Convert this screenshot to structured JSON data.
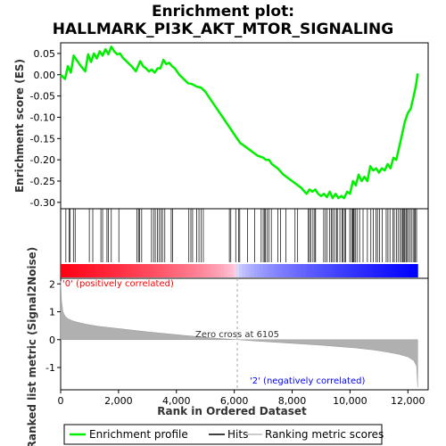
{
  "chart_data": {
    "type": "line",
    "title_line1": "Enrichment plot:",
    "title_line2": "HALLMARK_PI3K_AKT_MTOR_SIGNALING",
    "top_panel": {
      "ylabel": "Enrichment score (ES)",
      "ylim": [
        -0.315,
        0.075
      ],
      "yticks": [
        0.05,
        0.0,
        -0.05,
        -0.1,
        -0.15,
        -0.2,
        -0.25,
        -0.3
      ],
      "ytick_labels": [
        "0.05",
        "0.00",
        "-0.05",
        "-0.10",
        "-0.15",
        "-0.20",
        "-0.25",
        "-0.30"
      ],
      "line_color": "#00ee00",
      "es_curve": {
        "x": [
          0,
          150,
          250,
          350,
          450,
          550,
          700,
          850,
          950,
          1050,
          1150,
          1250,
          1350,
          1450,
          1550,
          1650,
          1750,
          1850,
          1950,
          2050,
          2150,
          2300,
          2450,
          2600,
          2750,
          2850,
          2950,
          3050,
          3150,
          3250,
          3350,
          3450,
          3550,
          3650,
          3750,
          3850,
          3950,
          4100,
          4250,
          4400,
          4550,
          4700,
          4850,
          5000,
          5200,
          5400,
          5600,
          5800,
          6000,
          6200,
          6400,
          6600,
          6800,
          7000,
          7100,
          7200,
          7300,
          7500,
          7700,
          7900,
          8100,
          8300,
          8500,
          8600,
          8700,
          8800,
          8900,
          9000,
          9100,
          9200,
          9300,
          9400,
          9500,
          9600,
          9700,
          9800,
          9900,
          10000,
          10100,
          10200,
          10300,
          10400,
          10500,
          10600,
          10700,
          10800,
          10900,
          11000,
          11100,
          11200,
          11300,
          11400,
          11500,
          11600,
          11700,
          11800,
          11900,
          12000,
          12100,
          12200,
          12280,
          12340
        ],
        "y": [
          0.0,
          -0.01,
          0.02,
          0.005,
          0.045,
          0.035,
          0.02,
          0.008,
          0.048,
          0.03,
          0.05,
          0.038,
          0.055,
          0.045,
          0.06,
          0.048,
          0.066,
          0.055,
          0.048,
          0.05,
          0.04,
          0.03,
          0.02,
          0.008,
          0.032,
          0.02,
          0.015,
          0.008,
          0.012,
          0.005,
          0.015,
          0.015,
          0.035,
          0.025,
          0.028,
          0.02,
          0.015,
          0.0,
          -0.01,
          -0.02,
          -0.022,
          -0.028,
          -0.03,
          -0.04,
          -0.06,
          -0.08,
          -0.1,
          -0.12,
          -0.14,
          -0.16,
          -0.17,
          -0.18,
          -0.19,
          -0.195,
          -0.2,
          -0.2,
          -0.21,
          -0.22,
          -0.235,
          -0.245,
          -0.255,
          -0.265,
          -0.28,
          -0.27,
          -0.275,
          -0.27,
          -0.28,
          -0.285,
          -0.28,
          -0.288,
          -0.275,
          -0.29,
          -0.28,
          -0.29,
          -0.285,
          -0.29,
          -0.275,
          -0.28,
          -0.25,
          -0.26,
          -0.235,
          -0.25,
          -0.24,
          -0.25,
          -0.215,
          -0.225,
          -0.22,
          -0.23,
          -0.22,
          -0.225,
          -0.21,
          -0.22,
          -0.195,
          -0.2,
          -0.17,
          -0.14,
          -0.11,
          -0.09,
          -0.08,
          -0.05,
          -0.025,
          0.003
        ]
      },
      "hits": [
        180,
        290,
        330,
        440,
        500,
        990,
        1110,
        1390,
        1450,
        1600,
        1650,
        1750,
        2010,
        2640,
        2690,
        2730,
        2800,
        3140,
        3210,
        3270,
        3340,
        3400,
        3470,
        3520,
        3600,
        3820,
        3870,
        4430,
        4500,
        4560,
        4700,
        4780,
        4860,
        4930,
        5830,
        5880,
        6050,
        6150,
        6190,
        6460,
        6700,
        6930,
        7000,
        7050,
        7080,
        7140,
        7200,
        7280,
        7510,
        7600,
        7780,
        8100,
        8190,
        8550,
        8600,
        8640,
        8720,
        8780,
        8810,
        9090,
        9150,
        9210,
        9300,
        9350,
        9400,
        9460,
        9530,
        9560,
        9650,
        9720,
        9760,
        9810,
        9850,
        9990,
        10050,
        10090,
        10110,
        10140,
        10180,
        10240,
        10330,
        10450,
        10600,
        10720,
        10800,
        10900,
        10950,
        11020,
        11110,
        11250,
        11310,
        11380,
        11480,
        11530,
        11600,
        11660,
        11730,
        11780,
        11820,
        11860,
        11880,
        11930,
        11960,
        12010,
        12070,
        12120,
        12180,
        12230,
        12260,
        12300
      ]
    },
    "bottom_panel": {
      "ylabel": "Ranked list metric (Signal2Noise)",
      "xlabel": "Rank in Ordered Dataset",
      "ylim": [
        -1.8,
        2.2
      ],
      "yticks": [
        2,
        1,
        0,
        -1
      ],
      "ytick_labels": [
        "2",
        "1",
        "0",
        "-1"
      ],
      "xlim": [
        0,
        12700
      ],
      "xticks": [
        0,
        2000,
        4000,
        6000,
        8000,
        10000,
        12000
      ],
      "xtick_labels": [
        "0",
        "2,000",
        "4,000",
        "6,000",
        "8,000",
        "10,000",
        "12,000"
      ],
      "zero_cross_label": "Zero cross at 6105",
      "zero_cross": 6105,
      "pos_label": "'0' (positively correlated)",
      "neg_label": "'2' (negatively correlated)",
      "pos_color": "#ff0000",
      "neg_color": "#0000ff",
      "metric": {
        "x": [
          0,
          30,
          80,
          150,
          250,
          400,
          600,
          900,
          1300,
          1800,
          2400,
          3000,
          3600,
          4200,
          4800,
          5400,
          6000,
          6105,
          6600,
          7200,
          7800,
          8400,
          9000,
          9600,
          10200,
          10800,
          11300,
          11700,
          12000,
          12200,
          12300,
          12340
        ],
        "y": [
          2.1,
          1.4,
          1.0,
          0.85,
          0.75,
          0.68,
          0.62,
          0.55,
          0.48,
          0.42,
          0.35,
          0.28,
          0.22,
          0.16,
          0.1,
          0.05,
          0.005,
          0.0,
          -0.04,
          -0.08,
          -0.12,
          -0.16,
          -0.2,
          -0.25,
          -0.3,
          -0.37,
          -0.45,
          -0.53,
          -0.62,
          -0.75,
          -0.95,
          -1.7
        ]
      }
    },
    "legend": {
      "entries": [
        "Enrichment profile",
        "Hits",
        "Ranking metric scores"
      ]
    }
  }
}
